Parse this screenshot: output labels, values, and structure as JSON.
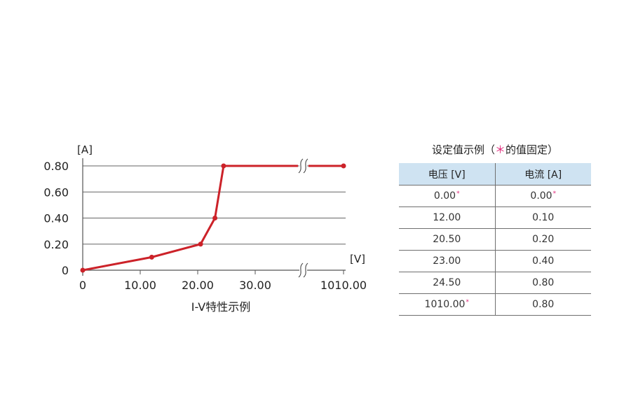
{
  "chart_data": {
    "type": "line",
    "caption": "I-V特性示例",
    "y_unit": "[A]",
    "x_unit": "[V]",
    "x_tick_labels": [
      "0",
      "10.00",
      "20.00",
      "30.00",
      "1010.00"
    ],
    "y_tick_labels": [
      "0",
      "0.20",
      "0.40",
      "0.60",
      "0.80"
    ],
    "y_ticks": [
      0,
      0.2,
      0.4,
      0.6,
      0.8
    ],
    "xlim": [
      0,
      1010
    ],
    "ylim": [
      0,
      0.8
    ],
    "axis_break": "between 30.00 and 1010.00",
    "grid": "horizontal",
    "color": "#cc2229",
    "series": [
      {
        "x": [
          0.0,
          12.0,
          20.5,
          23.0,
          24.5,
          1010.0
        ],
        "y": [
          0.0,
          0.1,
          0.2,
          0.4,
          0.8,
          0.8
        ]
      }
    ]
  },
  "table": {
    "title_prefix": "设定值示例（",
    "title_star": "＊",
    "title_suffix": "的值固定）",
    "headers": [
      "电压 [V]",
      "电流 [A]"
    ],
    "rows": [
      {
        "v": "0.00",
        "i": "0.00",
        "v_fixed": true,
        "i_fixed": true
      },
      {
        "v": "12.00",
        "i": "0.10",
        "v_fixed": false,
        "i_fixed": false
      },
      {
        "v": "20.50",
        "i": "0.20",
        "v_fixed": false,
        "i_fixed": false
      },
      {
        "v": "23.00",
        "i": "0.40",
        "v_fixed": false,
        "i_fixed": false
      },
      {
        "v": "24.50",
        "i": "0.80",
        "v_fixed": false,
        "i_fixed": false
      },
      {
        "v": "1010.00",
        "i": "0.80",
        "v_fixed": true,
        "i_fixed": false
      }
    ],
    "fixed_mark": "*",
    "mark_color": "#e0287a"
  }
}
